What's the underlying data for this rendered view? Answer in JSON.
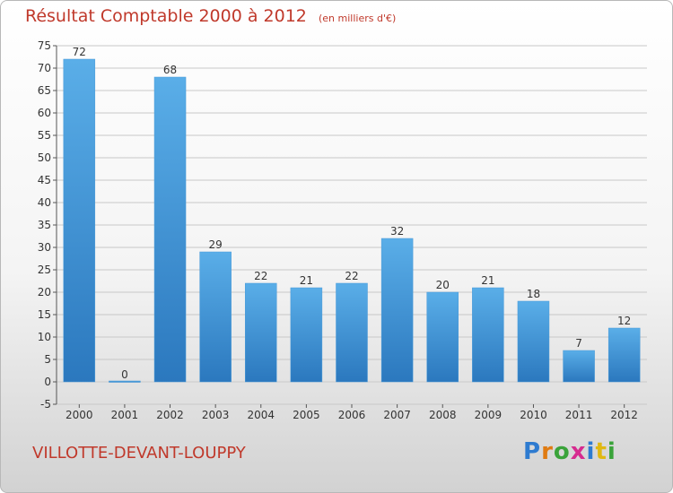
{
  "title": "Résultat Comptable 2000 à 2012",
  "unit": "(en milliers d'€)",
  "commune": "VILLOTTE-DEVANT-LOUPPY",
  "logo": {
    "letters": [
      "P",
      "r",
      "o",
      "x",
      "i",
      "t",
      "i"
    ],
    "colors": [
      "#2e7bd0",
      "#e07b12",
      "#3aa33a",
      "#d62b8f",
      "#2e7bd0",
      "#e0b812",
      "#3aa33a"
    ]
  },
  "colors": {
    "bar_top": "#5aaee8",
    "bar_bottom": "#2b78be",
    "grid": "#c8c8c8"
  },
  "chart_data": {
    "type": "bar",
    "title": "Résultat Comptable 2000 à 2012",
    "subtitle": "(en milliers d'€)",
    "xlabel": "",
    "ylabel": "",
    "categories": [
      "2000",
      "2001",
      "2002",
      "2003",
      "2004",
      "2005",
      "2006",
      "2007",
      "2008",
      "2009",
      "2010",
      "2011",
      "2012"
    ],
    "values": [
      72,
      0,
      68,
      29,
      22,
      21,
      22,
      32,
      20,
      21,
      18,
      7,
      12
    ],
    "value_labels": [
      "72",
      "0",
      "68",
      "29",
      "22",
      "21",
      "22",
      "32",
      "20",
      "21",
      "18",
      "7",
      "12"
    ],
    "ylim": [
      -5,
      75
    ],
    "yticks": [
      -5,
      0,
      5,
      10,
      15,
      20,
      25,
      30,
      35,
      40,
      45,
      50,
      55,
      60,
      65,
      70,
      75
    ],
    "grid": true
  }
}
